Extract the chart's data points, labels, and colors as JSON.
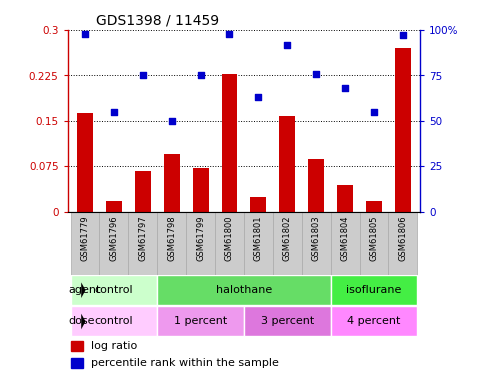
{
  "title": "GDS1398 / 11459",
  "samples": [
    "GSM61779",
    "GSM61796",
    "GSM61797",
    "GSM61798",
    "GSM61799",
    "GSM61800",
    "GSM61801",
    "GSM61802",
    "GSM61803",
    "GSM61804",
    "GSM61805",
    "GSM61806"
  ],
  "log_ratio": [
    0.163,
    0.018,
    0.068,
    0.095,
    0.073,
    0.228,
    0.025,
    0.158,
    0.088,
    0.045,
    0.018,
    0.27
  ],
  "percentile_rank": [
    98,
    55,
    75,
    50,
    75,
    98,
    63,
    92,
    76,
    68,
    55,
    97
  ],
  "bar_color": "#cc0000",
  "dot_color": "#0000cc",
  "ylim_left": [
    0,
    0.3
  ],
  "ylim_right": [
    0,
    100
  ],
  "yticks_left": [
    0,
    0.075,
    0.15,
    0.225,
    0.3
  ],
  "yticks_right": [
    0,
    25,
    50,
    75,
    100
  ],
  "ytick_labels_left": [
    "0",
    "0.075",
    "0.15",
    "0.225",
    "0.3"
  ],
  "ytick_labels_right": [
    "0",
    "25",
    "50",
    "75",
    "100%"
  ],
  "agent_groups": [
    {
      "label": "control",
      "start": 0,
      "end": 3,
      "color": "#ccffcc"
    },
    {
      "label": "halothane",
      "start": 3,
      "end": 9,
      "color": "#66dd66"
    },
    {
      "label": "isoflurane",
      "start": 9,
      "end": 12,
      "color": "#44ee44"
    }
  ],
  "dose_groups": [
    {
      "label": "control",
      "start": 0,
      "end": 3,
      "color": "#ffccff"
    },
    {
      "label": "1 percent",
      "start": 3,
      "end": 6,
      "color": "#ee99ee"
    },
    {
      "label": "3 percent",
      "start": 6,
      "end": 9,
      "color": "#dd77dd"
    },
    {
      "label": "4 percent",
      "start": 9,
      "end": 12,
      "color": "#ff88ff"
    }
  ],
  "tick_bg_color": "#cccccc",
  "tick_border_color": "#aaaaaa",
  "legend_items": [
    {
      "label": "log ratio",
      "color": "#cc0000"
    },
    {
      "label": "percentile rank within the sample",
      "color": "#0000cc"
    }
  ]
}
